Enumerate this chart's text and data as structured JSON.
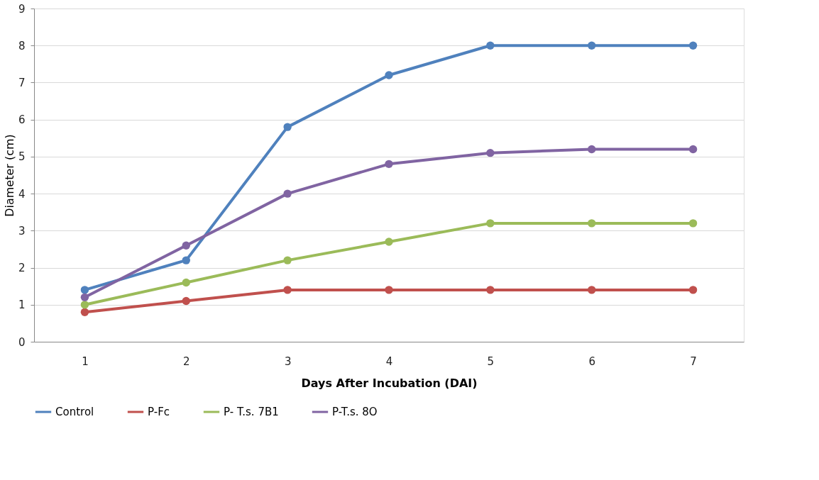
{
  "chart_data": {
    "type": "line",
    "xlabel": "Days After Incubation (DAI)",
    "ylabel": "Diameter (cm)",
    "categories": [
      "1",
      "2",
      "3",
      "4",
      "5",
      "6",
      "7"
    ],
    "series": [
      {
        "name": "Control",
        "color": "#4f81bd",
        "values": [
          1.4,
          2.2,
          5.8,
          7.2,
          8,
          8,
          8
        ]
      },
      {
        "name": "P-Fc",
        "color": "#c0504d",
        "values": [
          0.8,
          1.1,
          1.4,
          1.4,
          1.4,
          1.4,
          1.4
        ]
      },
      {
        "name": "P- T.s. 7B1",
        "color": "#9bbb59",
        "values": [
          1.0,
          1.6,
          2.2,
          2.7,
          3.2,
          3.2,
          3.2
        ]
      },
      {
        "name": "P-T.s. 8O",
        "color": "#8064a2",
        "values": [
          1.2,
          2.6,
          4.0,
          4.8,
          5.1,
          5.2,
          5.2
        ]
      }
    ],
    "ylim": [
      0,
      9
    ],
    "yticks": [
      0,
      1,
      2,
      3,
      4,
      5,
      6,
      7,
      8,
      9
    ],
    "grid": "y",
    "legend": "bottom",
    "marker": "circle",
    "line_style": "solid"
  }
}
